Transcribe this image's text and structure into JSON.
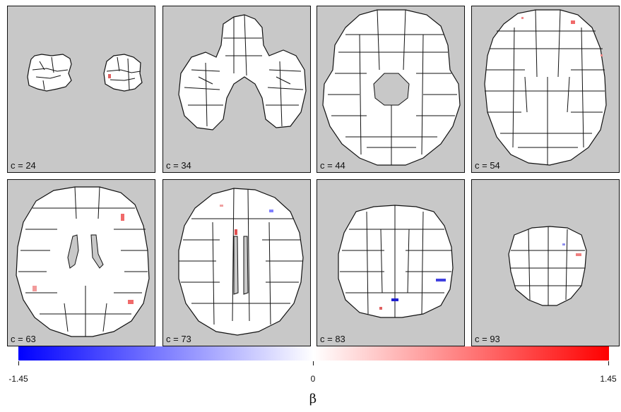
{
  "panels": [
    {
      "label": "c = 24"
    },
    {
      "label": "c = 34"
    },
    {
      "label": "c = 44"
    },
    {
      "label": "c = 54"
    },
    {
      "label": "c = 63"
    },
    {
      "label": "c = 73"
    },
    {
      "label": "c = 83"
    },
    {
      "label": "c = 93"
    }
  ],
  "colorbar": {
    "min_label": "-1.45",
    "mid_label": "0",
    "max_label": "1.45",
    "title": "β",
    "low_color": "#0000ff",
    "mid_color": "#ffffff",
    "high_color": "#ff0000"
  },
  "colors": {
    "panel_background": "#c8c8c8",
    "brain_fill": "#ffffff",
    "outline": "#111111"
  }
}
